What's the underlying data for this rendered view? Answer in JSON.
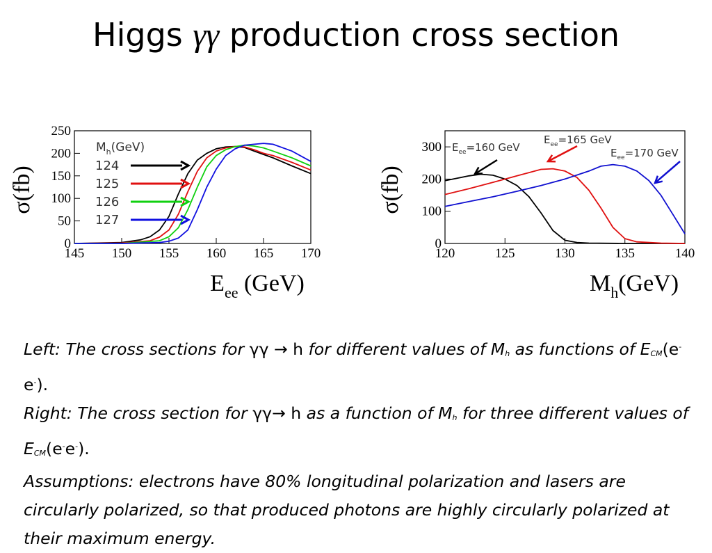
{
  "slide": {
    "title_pre": "Higgs ",
    "title_gg": "γγ",
    "title_post": " production cross section"
  },
  "caption": {
    "l1": "Left: The cross sections for ",
    "gg": "γγ",
    "arrow": "→",
    "h": "h",
    "l1b": " for different values of M",
    "sub_h": "h",
    "l1c": " as functions of E",
    "sub_cm": "CM",
    "ee": "(e",
    "minus": "-",
    "ee2": "e",
    "close1": ").",
    "r1": "Right: The cross section for ",
    "r1b": " as a function of M",
    "r1c": " for three different values of E",
    "assumptions": "Assumptions: electrons have 80% longitudinal polarization and lasers are circularly polarized, so that produced photons are highly circularly polarized at their maximum energy."
  },
  "chart_data": [
    {
      "type": "line",
      "ylabel": "σ(fb)",
      "xlabel_main": "E",
      "xlabel_sub": "ee",
      "xlabel_unit": " (GeV)",
      "xlim": [
        145,
        170
      ],
      "ylim": [
        0,
        250
      ],
      "xticks": [
        145,
        150,
        155,
        160,
        165,
        170
      ],
      "yticks": [
        0,
        50,
        100,
        150,
        200,
        250
      ],
      "legend_title_main": "M",
      "legend_title_sub": "h",
      "legend_title_unit": "(GeV)",
      "series": [
        {
          "name": "124",
          "color": "#000000",
          "x": [
            145,
            150,
            152,
            153,
            154,
            155,
            156,
            157,
            158,
            159,
            160,
            161,
            162,
            163,
            164,
            166,
            168,
            170
          ],
          "y": [
            0,
            2,
            8,
            15,
            30,
            60,
            110,
            155,
            185,
            200,
            210,
            214,
            215,
            213,
            205,
            190,
            172,
            155
          ]
        },
        {
          "name": "125",
          "color": "#e01010",
          "x": [
            145,
            150,
            153,
            154,
            155,
            156,
            157,
            158,
            159,
            160,
            161,
            162,
            163,
            164,
            165,
            166,
            168,
            170
          ],
          "y": [
            0,
            1,
            6,
            14,
            30,
            65,
            115,
            160,
            190,
            205,
            212,
            215,
            214,
            208,
            200,
            195,
            180,
            163
          ]
        },
        {
          "name": "126",
          "color": "#10d010",
          "x": [
            145,
            150,
            154,
            155,
            156,
            157,
            158,
            159,
            160,
            161,
            162,
            163,
            164,
            165,
            166,
            168,
            170
          ],
          "y": [
            0,
            0,
            6,
            15,
            35,
            75,
            125,
            170,
            195,
            208,
            215,
            218,
            216,
            212,
            205,
            190,
            172
          ]
        },
        {
          "name": "127",
          "color": "#1010e0",
          "x": [
            145,
            150,
            154,
            155,
            156,
            157,
            158,
            159,
            160,
            161,
            162,
            163,
            164,
            165,
            166,
            168,
            170
          ],
          "y": [
            0,
            0,
            2,
            5,
            12,
            30,
            75,
            125,
            165,
            195,
            210,
            218,
            220,
            222,
            220,
            205,
            182
          ]
        }
      ]
    },
    {
      "type": "line",
      "ylabel": "σ(fb)",
      "xlabel_main": "M",
      "xlabel_sub": "h",
      "xlabel_unit": "(GeV)",
      "xlim": [
        120,
        140
      ],
      "ylim": [
        0,
        350
      ],
      "xticks": [
        120,
        125,
        130,
        135,
        140
      ],
      "yticks": [
        0,
        100,
        200,
        300
      ],
      "series": [
        {
          "name": "160",
          "color": "#000000",
          "x": [
            120,
            122,
            123,
            124,
            125,
            126,
            127,
            128,
            129,
            130,
            131,
            132,
            135,
            140
          ],
          "y": [
            195,
            210,
            215,
            212,
            200,
            180,
            145,
            95,
            40,
            10,
            3,
            1,
            0,
            0
          ]
        },
        {
          "name": "165",
          "color": "#e01010",
          "x": [
            120,
            122,
            124,
            126,
            128,
            129,
            130,
            131,
            132,
            133,
            134,
            135,
            136,
            138,
            140
          ],
          "y": [
            152,
            170,
            190,
            210,
            230,
            232,
            225,
            205,
            165,
            110,
            50,
            15,
            5,
            1,
            0
          ]
        },
        {
          "name": "170",
          "color": "#1010d0",
          "x": [
            120,
            122,
            124,
            126,
            128,
            130,
            132,
            133,
            134,
            135,
            136,
            137,
            138,
            139,
            140
          ],
          "y": [
            115,
            130,
            145,
            162,
            180,
            200,
            225,
            240,
            245,
            240,
            225,
            195,
            150,
            90,
            30
          ]
        }
      ],
      "labels": [
        {
          "prefix": "E",
          "sub": "ee",
          "text": "=160 GeV"
        },
        {
          "prefix": "E",
          "sub": "ee",
          "text": "=165 GeV"
        },
        {
          "prefix": "E",
          "sub": "ee",
          "text": "=170 GeV"
        }
      ]
    }
  ]
}
